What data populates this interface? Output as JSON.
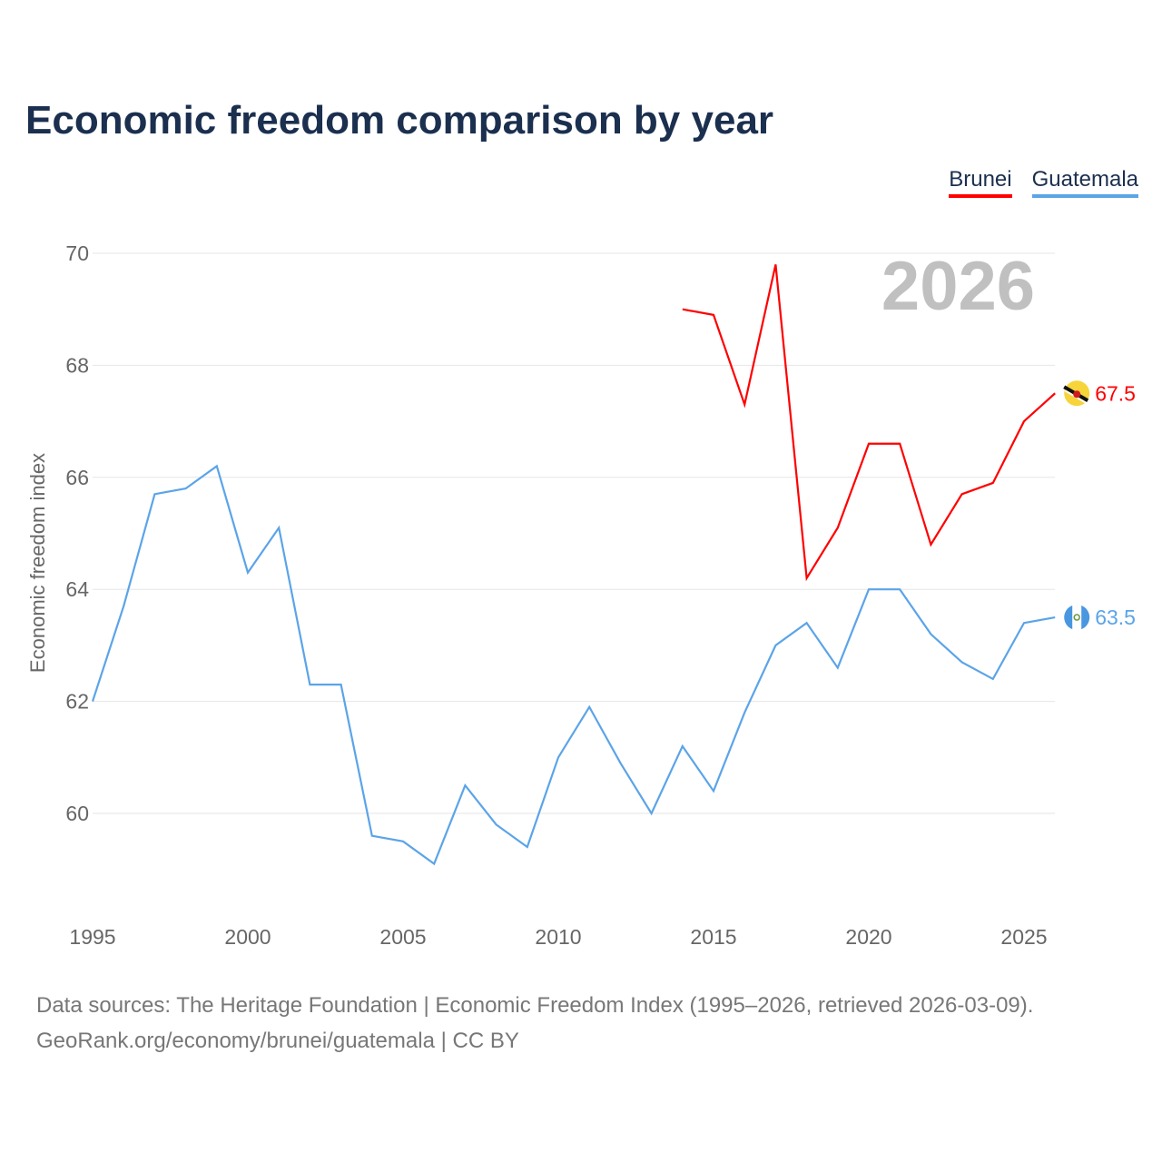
{
  "chart_data": {
    "type": "line",
    "title": "Economic freedom comparison by year",
    "ylabel": "Economic freedom index",
    "xlabel": "",
    "ylim": [
      58.2,
      70.5
    ],
    "xlim": [
      1995,
      2026
    ],
    "yticks": [
      "60",
      "62",
      "64",
      "66",
      "68",
      "70"
    ],
    "xticks": [
      "1995",
      "2000",
      "2005",
      "2010",
      "2015",
      "2020",
      "2025"
    ],
    "grid": true,
    "legend_position": "top-right",
    "year_watermark": "2026",
    "series": [
      {
        "name": "Brunei",
        "color": "#ff0000",
        "end_label": "67.5",
        "x": [
          2014,
          2015,
          2016,
          2017,
          2018,
          2019,
          2020,
          2021,
          2022,
          2023,
          2024,
          2025,
          2026
        ],
        "values": [
          69.0,
          68.9,
          67.3,
          69.8,
          64.2,
          65.1,
          66.6,
          66.6,
          64.8,
          65.7,
          65.9,
          67.0,
          67.5
        ]
      },
      {
        "name": "Guatemala",
        "color": "#5ba4e8",
        "end_label": "63.5",
        "x": [
          1995,
          1996,
          1997,
          1998,
          1999,
          2000,
          2001,
          2002,
          2003,
          2004,
          2005,
          2006,
          2007,
          2008,
          2009,
          2010,
          2011,
          2012,
          2013,
          2014,
          2015,
          2016,
          2017,
          2018,
          2019,
          2020,
          2021,
          2022,
          2023,
          2024,
          2025,
          2026
        ],
        "values": [
          62.0,
          63.7,
          65.7,
          65.8,
          66.2,
          64.3,
          65.1,
          62.3,
          62.3,
          59.6,
          59.5,
          59.1,
          60.5,
          59.8,
          59.4,
          61.0,
          61.9,
          60.9,
          60.0,
          61.2,
          60.4,
          61.8,
          63.0,
          63.4,
          62.6,
          64.0,
          64.0,
          63.2,
          62.7,
          62.4,
          63.4,
          63.5
        ]
      }
    ]
  },
  "source": {
    "line1": "Data sources: The Heritage Foundation | Economic Freedom Index (1995–2026, retrieved 2026-03-09).",
    "line2": "GeoRank.org/economy/brunei/guatemala | CC BY"
  }
}
